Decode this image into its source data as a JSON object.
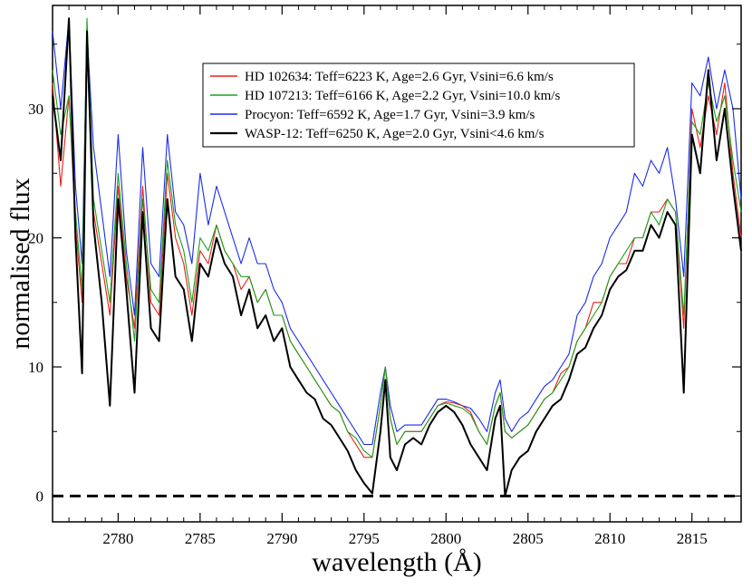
{
  "chart_data": {
    "type": "line",
    "title": "",
    "xlabel": "wavelength (Å)",
    "ylabel": "normalised flux",
    "xlim": [
      2776,
      2818
    ],
    "ylim": [
      -2,
      38
    ],
    "xticks": [
      2780,
      2785,
      2790,
      2795,
      2800,
      2805,
      2810,
      2815
    ],
    "yticks": [
      0,
      10,
      20,
      30
    ],
    "grid": false,
    "legend_position": "top-center",
    "reference_line": {
      "y": 0,
      "style": "dashed",
      "color": "#000000"
    },
    "series": [
      {
        "name": "HD 102634: Teff=6223 K, Age=2.6 Gyr, Vsini=6.6 km/s",
        "color": "#e8201a",
        "x": [
          2776,
          2776.5,
          2777,
          2777.4,
          2777.8,
          2778.1,
          2778.5,
          2779,
          2779.5,
          2780,
          2780.5,
          2781,
          2781.5,
          2782,
          2782.5,
          2783,
          2783.5,
          2784,
          2784.5,
          2785,
          2785.5,
          2786,
          2786.5,
          2787,
          2787.5,
          2788,
          2788.5,
          2789,
          2789.5,
          2790,
          2790.5,
          2791,
          2791.5,
          2792,
          2792.5,
          2793,
          2793.5,
          2794,
          2794.5,
          2795,
          2795.5,
          2796,
          2796.3,
          2796.6,
          2797,
          2797.5,
          2798,
          2798.5,
          2799,
          2799.5,
          2800,
          2800.5,
          2801,
          2801.5,
          2802,
          2802.5,
          2803,
          2803.3,
          2803.6,
          2804,
          2804.5,
          2805,
          2805.5,
          2806,
          2806.5,
          2807,
          2807.5,
          2808,
          2808.5,
          2809,
          2809.5,
          2810,
          2810.5,
          2811,
          2811.5,
          2812,
          2812.5,
          2813,
          2813.5,
          2814,
          2814.5,
          2815,
          2815.5,
          2816,
          2816.5,
          2817,
          2817.5,
          2818
        ],
        "y": [
          32,
          24,
          31,
          21,
          15,
          35,
          22,
          18,
          14,
          24,
          17,
          13,
          24,
          15,
          14,
          25,
          20,
          18,
          14,
          19,
          18,
          21,
          19,
          18,
          16,
          17,
          15,
          16,
          14,
          14,
          12,
          11,
          10,
          9,
          8,
          7,
          6.5,
          5,
          4,
          3,
          3,
          7,
          10,
          6,
          4,
          5,
          5,
          5,
          6,
          7,
          7.3,
          7.2,
          7,
          6.5,
          5,
          4,
          7,
          8,
          5,
          4.5,
          5,
          5.5,
          6.5,
          7.5,
          8,
          9.5,
          10,
          12,
          13,
          15,
          15,
          17,
          18,
          18,
          20,
          20,
          22,
          22,
          23,
          22,
          13,
          30,
          27,
          31,
          28,
          32,
          25,
          20
        ]
      },
      {
        "name": "HD 107213: Teff=6166 K, Age=2.2 Gyr, Vsini=10.0 km/s",
        "color": "#1ea11a",
        "x": [
          2776,
          2776.5,
          2777,
          2777.4,
          2777.8,
          2778.1,
          2778.5,
          2779,
          2779.5,
          2780,
          2780.5,
          2781,
          2781.5,
          2782,
          2782.5,
          2783,
          2783.5,
          2784,
          2784.5,
          2785,
          2785.5,
          2786,
          2786.5,
          2787,
          2787.5,
          2788,
          2788.5,
          2789,
          2789.5,
          2790,
          2790.5,
          2791,
          2791.5,
          2792,
          2792.5,
          2793,
          2793.5,
          2794,
          2794.5,
          2795,
          2795.5,
          2796,
          2796.3,
          2796.6,
          2797,
          2797.5,
          2798,
          2798.5,
          2799,
          2799.5,
          2800,
          2800.5,
          2801,
          2801.5,
          2802,
          2802.5,
          2803,
          2803.3,
          2803.6,
          2804,
          2804.5,
          2805,
          2805.5,
          2806,
          2806.5,
          2807,
          2807.5,
          2808,
          2808.5,
          2809,
          2809.5,
          2810,
          2810.5,
          2811,
          2811.5,
          2812,
          2812.5,
          2813,
          2813.5,
          2814,
          2814.5,
          2815,
          2815.5,
          2816,
          2816.5,
          2817,
          2817.5,
          2818
        ],
        "y": [
          33,
          28,
          31,
          22,
          16,
          37,
          23,
          19,
          15,
          25,
          18,
          12,
          23,
          16,
          15,
          26,
          21,
          19,
          15,
          20,
          19,
          21,
          19,
          18,
          17,
          17,
          15,
          16,
          14,
          14,
          12,
          11,
          10,
          9,
          8,
          7,
          6.5,
          5,
          4.5,
          3.5,
          3,
          7,
          10,
          6,
          4,
          5,
          5,
          5,
          6,
          7,
          7.2,
          7,
          6.8,
          6.3,
          5,
          4,
          7,
          8,
          5,
          4.5,
          5,
          5.5,
          6.5,
          7.5,
          8,
          9,
          10,
          12,
          13,
          14,
          15,
          17,
          18,
          19,
          20,
          20,
          22,
          21,
          23,
          22,
          14,
          29,
          28,
          32,
          29,
          31,
          26,
          22
        ]
      },
      {
        "name": "Procyon: Teff=6592 K, Age=1.7 Gyr, Vsini=3.9 km/s",
        "color": "#1a2bea",
        "x": [
          2776,
          2776.5,
          2777,
          2777.4,
          2777.8,
          2778.1,
          2778.5,
          2779,
          2779.5,
          2780,
          2780.5,
          2781,
          2781.5,
          2782,
          2782.5,
          2783,
          2783.5,
          2784,
          2784.5,
          2785,
          2785.5,
          2786,
          2786.5,
          2787,
          2787.5,
          2788,
          2788.5,
          2789,
          2789.5,
          2790,
          2790.5,
          2791,
          2791.5,
          2792,
          2792.5,
          2793,
          2793.5,
          2794,
          2794.5,
          2795,
          2795.5,
          2796,
          2796.3,
          2796.6,
          2797,
          2797.5,
          2798,
          2798.5,
          2799,
          2799.5,
          2800,
          2800.5,
          2801,
          2801.5,
          2802,
          2802.5,
          2803,
          2803.3,
          2803.6,
          2804,
          2804.5,
          2805,
          2805.5,
          2806,
          2806.5,
          2807,
          2807.5,
          2808,
          2808.5,
          2809,
          2809.5,
          2810,
          2810.5,
          2811,
          2811.5,
          2812,
          2812.5,
          2813,
          2813.5,
          2814,
          2814.5,
          2815,
          2815.5,
          2816,
          2816.5,
          2817,
          2817.5,
          2818
        ],
        "y": [
          36,
          30,
          37,
          24,
          18,
          36,
          27,
          22,
          17,
          28,
          19,
          14,
          27,
          18,
          17,
          28,
          22,
          21,
          18,
          25,
          21,
          24,
          22,
          20,
          18,
          20,
          18,
          18,
          16,
          15,
          13,
          12,
          11,
          10,
          9,
          8,
          7,
          6,
          5,
          4,
          4,
          8,
          10,
          7,
          5,
          5.5,
          5.5,
          5.5,
          6.5,
          7.5,
          7.5,
          7.3,
          7,
          6.8,
          6,
          5,
          8,
          9,
          6,
          5,
          6,
          6.5,
          7.5,
          8.5,
          9,
          10,
          11,
          14,
          15,
          17,
          18,
          20,
          21,
          22,
          25,
          24,
          26,
          25,
          27,
          23,
          17,
          32,
          31,
          34,
          30,
          33,
          30,
          23
        ]
      },
      {
        "name": "WASP-12: Teff=6250 K, Age=2.0 Gyr, Vsini<4.6 km/s",
        "color": "#000000",
        "x": [
          2776,
          2776.5,
          2777,
          2777.4,
          2777.8,
          2778.1,
          2778.5,
          2779,
          2779.5,
          2780,
          2780.5,
          2781,
          2781.5,
          2782,
          2782.5,
          2783,
          2783.5,
          2784,
          2784.5,
          2785,
          2785.5,
          2786,
          2786.5,
          2787,
          2787.5,
          2788,
          2788.5,
          2789,
          2789.5,
          2790,
          2790.5,
          2791,
          2791.5,
          2792,
          2792.5,
          2793,
          2793.5,
          2794,
          2794.5,
          2795,
          2795.5,
          2796,
          2796.3,
          2796.6,
          2797,
          2797.5,
          2798,
          2798.5,
          2799,
          2799.5,
          2800,
          2800.5,
          2801,
          2801.5,
          2802,
          2802.5,
          2803,
          2803.3,
          2803.6,
          2804,
          2804.5,
          2805,
          2805.5,
          2806,
          2806.5,
          2807,
          2807.5,
          2808,
          2808.5,
          2809,
          2809.5,
          2810,
          2810.5,
          2811,
          2811.5,
          2812,
          2812.5,
          2813,
          2813.5,
          2814,
          2814.5,
          2815,
          2815.5,
          2816,
          2816.5,
          2817,
          2817.5,
          2818
        ],
        "y": [
          31,
          26,
          37,
          20,
          9.5,
          36,
          21,
          15,
          7,
          23,
          16,
          8,
          22,
          13,
          12,
          23,
          17,
          16,
          12,
          18,
          17,
          20,
          18,
          17,
          14,
          16,
          13,
          14,
          12,
          13,
          10,
          9,
          8,
          7.5,
          6,
          5.5,
          4.5,
          3.5,
          2,
          1,
          0.2,
          5,
          9,
          3,
          2,
          4,
          4.5,
          4,
          5.5,
          6.5,
          7,
          6.5,
          5.5,
          4,
          3,
          2,
          6,
          7,
          0,
          2,
          3,
          3.5,
          5,
          6,
          7,
          7.5,
          9,
          11,
          11.5,
          13,
          14,
          16,
          17,
          17.5,
          19,
          19,
          21,
          20,
          22,
          21,
          8,
          28,
          25,
          33,
          26,
          30,
          24,
          19
        ]
      }
    ]
  }
}
